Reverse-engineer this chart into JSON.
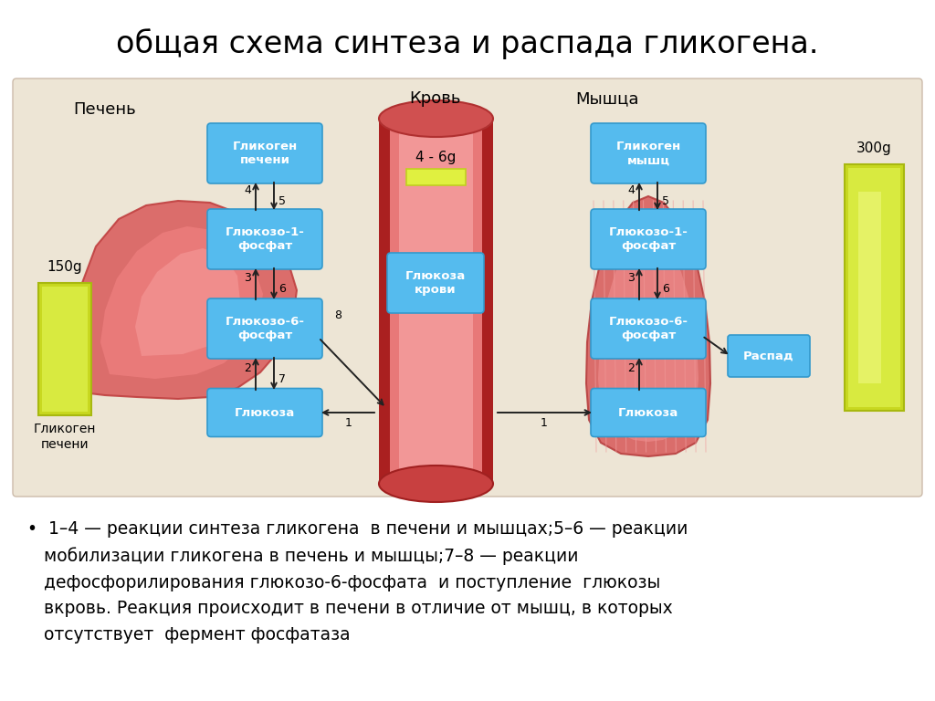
{
  "title": "общая схема синтеза и распада гликогена.",
  "title_fontsize": 24,
  "diagram_bg": "#ede5d5",
  "box_color": "#55bbee",
  "box_edge": "#3399cc",
  "yellow_bar_color1": "#d8e84a",
  "yellow_bar_color2": "#e8f060",
  "yellow_bar_edge": "#b8c820",
  "footer_text": "•  1–4 — реакции синтеза гликогена  в печени и мышцах;5–6 — реакции\n   мобилизации гликогена в печень и мышцы;7–8 — реакции\n   дефосфорилирования глюкозо-6-фосфата  и поступление  глюкозы\n   вкровь. Реакция происходит в печени в отличие от мышц, в которых\n   отсутствует  фермент фосфатаза",
  "footer_fontsize": 13.5,
  "liver_label": "Печень",
  "blood_label": "Кровь",
  "muscle_label": "Мышца",
  "liver_bar_value": "150g",
  "liver_bar_label": "Гликоген\nпечени",
  "blood_bar_value": "4 - 6g",
  "muscle_bar_value": "300g",
  "muscle_bar_label": "Распад"
}
